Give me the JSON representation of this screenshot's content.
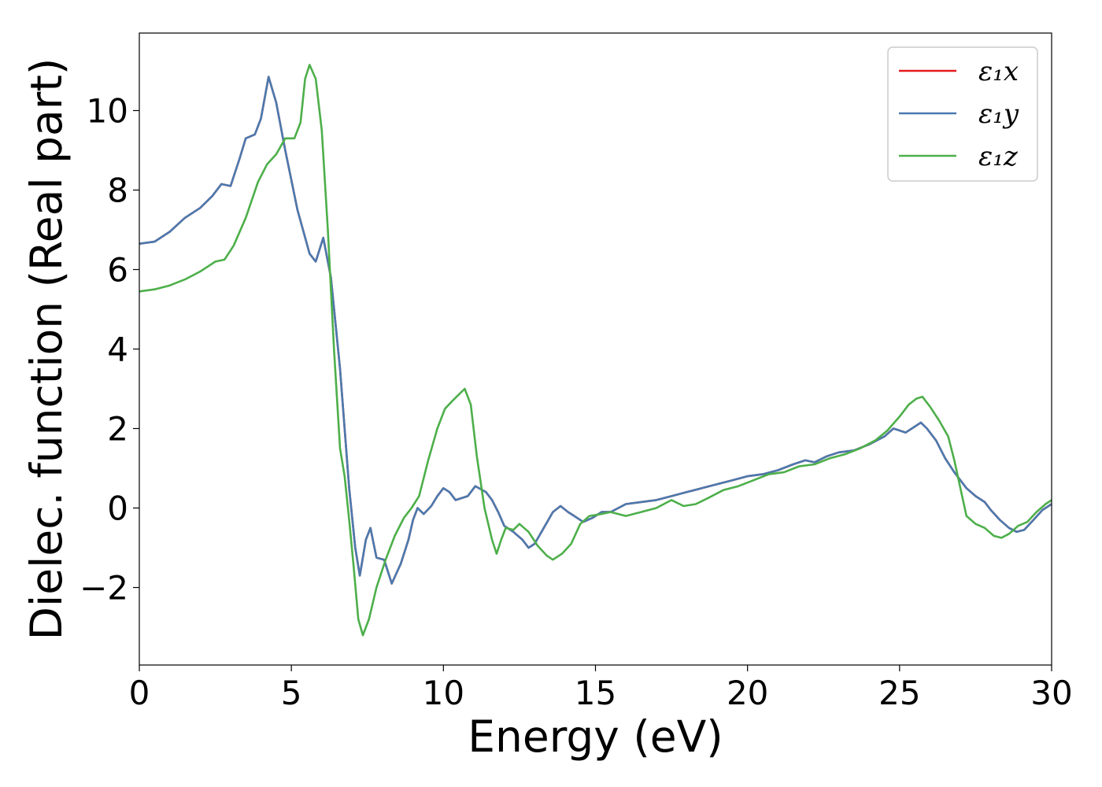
{
  "chart_data": {
    "type": "line",
    "title": "",
    "xlabel": "Energy (eV)",
    "ylabel": "Dielec. function (Real part)",
    "xlim": [
      0,
      30
    ],
    "ylim": [
      -3.95,
      11.95
    ],
    "xticks": [
      0,
      5,
      10,
      15,
      20,
      25,
      30
    ],
    "yticks": [
      -2,
      0,
      2,
      4,
      6,
      8,
      10
    ],
    "grid": false,
    "legend": "top-right",
    "series": [
      {
        "name": "ε₁x",
        "color": "#e41a1c",
        "points": [
          [
            0,
            6.65
          ],
          [
            0.5,
            6.7
          ],
          [
            1,
            6.95
          ],
          [
            1.5,
            7.3
          ],
          [
            2,
            7.55
          ],
          [
            2.4,
            7.85
          ],
          [
            2.7,
            8.15
          ],
          [
            3,
            8.1
          ],
          [
            3.3,
            8.8
          ],
          [
            3.5,
            9.3
          ],
          [
            3.8,
            9.4
          ],
          [
            4,
            9.8
          ],
          [
            4.25,
            10.85
          ],
          [
            4.5,
            10.2
          ],
          [
            4.8,
            9.0
          ],
          [
            5.2,
            7.5
          ],
          [
            5.6,
            6.4
          ],
          [
            5.8,
            6.2
          ],
          [
            6.05,
            6.8
          ],
          [
            6.3,
            5.8
          ],
          [
            6.6,
            3.5
          ],
          [
            6.9,
            0.5
          ],
          [
            7.1,
            -1.0
          ],
          [
            7.25,
            -1.7
          ],
          [
            7.45,
            -0.8
          ],
          [
            7.6,
            -0.5
          ],
          [
            7.8,
            -1.25
          ],
          [
            8.05,
            -1.3
          ],
          [
            8.3,
            -1.9
          ],
          [
            8.6,
            -1.4
          ],
          [
            8.85,
            -0.8
          ],
          [
            9.0,
            -0.3
          ],
          [
            9.15,
            0.0
          ],
          [
            9.35,
            -0.15
          ],
          [
            9.6,
            0.05
          ],
          [
            9.8,
            0.3
          ],
          [
            10.0,
            0.5
          ],
          [
            10.2,
            0.4
          ],
          [
            10.4,
            0.2
          ],
          [
            10.8,
            0.3
          ],
          [
            11.05,
            0.55
          ],
          [
            11.4,
            0.4
          ],
          [
            11.6,
            0.2
          ],
          [
            11.8,
            -0.1
          ],
          [
            12.0,
            -0.45
          ],
          [
            12.3,
            -0.6
          ],
          [
            12.6,
            -0.8
          ],
          [
            12.8,
            -1.0
          ],
          [
            13.0,
            -0.9
          ],
          [
            13.3,
            -0.5
          ],
          [
            13.6,
            -0.1
          ],
          [
            13.85,
            0.05
          ],
          [
            14.1,
            -0.1
          ],
          [
            14.3,
            -0.2
          ],
          [
            14.6,
            -0.35
          ],
          [
            14.9,
            -0.25
          ],
          [
            15.2,
            -0.1
          ],
          [
            15.5,
            -0.1
          ],
          [
            16.0,
            0.1
          ],
          [
            16.5,
            0.15
          ],
          [
            17.0,
            0.2
          ],
          [
            17.5,
            0.3
          ],
          [
            18.0,
            0.4
          ],
          [
            18.5,
            0.5
          ],
          [
            19.0,
            0.6
          ],
          [
            19.5,
            0.7
          ],
          [
            20.0,
            0.8
          ],
          [
            20.5,
            0.85
          ],
          [
            21.0,
            0.95
          ],
          [
            21.5,
            1.1
          ],
          [
            21.9,
            1.2
          ],
          [
            22.2,
            1.15
          ],
          [
            22.6,
            1.3
          ],
          [
            23.0,
            1.4
          ],
          [
            23.5,
            1.45
          ],
          [
            24.0,
            1.6
          ],
          [
            24.5,
            1.8
          ],
          [
            24.8,
            2.0
          ],
          [
            25.2,
            1.9
          ],
          [
            25.5,
            2.05
          ],
          [
            25.7,
            2.15
          ],
          [
            25.9,
            2.0
          ],
          [
            26.2,
            1.7
          ],
          [
            26.5,
            1.25
          ],
          [
            26.8,
            0.9
          ],
          [
            27.2,
            0.5
          ],
          [
            27.5,
            0.3
          ],
          [
            27.8,
            0.15
          ],
          [
            28.0,
            -0.05
          ],
          [
            28.3,
            -0.3
          ],
          [
            28.6,
            -0.5
          ],
          [
            28.85,
            -0.6
          ],
          [
            29.1,
            -0.55
          ],
          [
            29.4,
            -0.3
          ],
          [
            29.7,
            -0.05
          ],
          [
            30.0,
            0.1
          ]
        ]
      },
      {
        "name": "ε₁y",
        "color": "#4a7aaf",
        "points": [
          [
            0,
            6.65
          ],
          [
            0.5,
            6.7
          ],
          [
            1,
            6.95
          ],
          [
            1.5,
            7.3
          ],
          [
            2,
            7.55
          ],
          [
            2.4,
            7.85
          ],
          [
            2.7,
            8.15
          ],
          [
            3,
            8.1
          ],
          [
            3.3,
            8.8
          ],
          [
            3.5,
            9.3
          ],
          [
            3.8,
            9.4
          ],
          [
            4,
            9.8
          ],
          [
            4.25,
            10.85
          ],
          [
            4.5,
            10.2
          ],
          [
            4.8,
            9.0
          ],
          [
            5.2,
            7.5
          ],
          [
            5.6,
            6.4
          ],
          [
            5.8,
            6.2
          ],
          [
            6.05,
            6.8
          ],
          [
            6.3,
            5.8
          ],
          [
            6.6,
            3.5
          ],
          [
            6.9,
            0.5
          ],
          [
            7.1,
            -1.0
          ],
          [
            7.25,
            -1.7
          ],
          [
            7.45,
            -0.8
          ],
          [
            7.6,
            -0.5
          ],
          [
            7.8,
            -1.25
          ],
          [
            8.05,
            -1.3
          ],
          [
            8.3,
            -1.9
          ],
          [
            8.6,
            -1.4
          ],
          [
            8.85,
            -0.8
          ],
          [
            9.0,
            -0.3
          ],
          [
            9.15,
            0.0
          ],
          [
            9.35,
            -0.15
          ],
          [
            9.6,
            0.05
          ],
          [
            9.8,
            0.3
          ],
          [
            10.0,
            0.5
          ],
          [
            10.2,
            0.4
          ],
          [
            10.4,
            0.2
          ],
          [
            10.8,
            0.3
          ],
          [
            11.05,
            0.55
          ],
          [
            11.4,
            0.4
          ],
          [
            11.6,
            0.2
          ],
          [
            11.8,
            -0.1
          ],
          [
            12.0,
            -0.45
          ],
          [
            12.3,
            -0.6
          ],
          [
            12.6,
            -0.8
          ],
          [
            12.8,
            -1.0
          ],
          [
            13.0,
            -0.9
          ],
          [
            13.3,
            -0.5
          ],
          [
            13.6,
            -0.1
          ],
          [
            13.85,
            0.05
          ],
          [
            14.1,
            -0.1
          ],
          [
            14.3,
            -0.2
          ],
          [
            14.6,
            -0.35
          ],
          [
            14.9,
            -0.25
          ],
          [
            15.2,
            -0.1
          ],
          [
            15.5,
            -0.1
          ],
          [
            16.0,
            0.1
          ],
          [
            16.5,
            0.15
          ],
          [
            17.0,
            0.2
          ],
          [
            17.5,
            0.3
          ],
          [
            18.0,
            0.4
          ],
          [
            18.5,
            0.5
          ],
          [
            19.0,
            0.6
          ],
          [
            19.5,
            0.7
          ],
          [
            20.0,
            0.8
          ],
          [
            20.5,
            0.85
          ],
          [
            21.0,
            0.95
          ],
          [
            21.5,
            1.1
          ],
          [
            21.9,
            1.2
          ],
          [
            22.2,
            1.15
          ],
          [
            22.6,
            1.3
          ],
          [
            23.0,
            1.4
          ],
          [
            23.5,
            1.45
          ],
          [
            24.0,
            1.6
          ],
          [
            24.5,
            1.8
          ],
          [
            24.8,
            2.0
          ],
          [
            25.2,
            1.9
          ],
          [
            25.5,
            2.05
          ],
          [
            25.7,
            2.15
          ],
          [
            25.9,
            2.0
          ],
          [
            26.2,
            1.7
          ],
          [
            26.5,
            1.25
          ],
          [
            26.8,
            0.9
          ],
          [
            27.2,
            0.5
          ],
          [
            27.5,
            0.3
          ],
          [
            27.8,
            0.15
          ],
          [
            28.0,
            -0.05
          ],
          [
            28.3,
            -0.3
          ],
          [
            28.6,
            -0.5
          ],
          [
            28.85,
            -0.6
          ],
          [
            29.1,
            -0.55
          ],
          [
            29.4,
            -0.3
          ],
          [
            29.7,
            -0.05
          ],
          [
            30.0,
            0.1
          ]
        ]
      },
      {
        "name": "ε₁z",
        "color": "#4daf4a",
        "points": [
          [
            0,
            5.45
          ],
          [
            0.5,
            5.5
          ],
          [
            1,
            5.6
          ],
          [
            1.5,
            5.75
          ],
          [
            2,
            5.95
          ],
          [
            2.3,
            6.1
          ],
          [
            2.5,
            6.2
          ],
          [
            2.8,
            6.25
          ],
          [
            3.1,
            6.6
          ],
          [
            3.5,
            7.3
          ],
          [
            3.9,
            8.2
          ],
          [
            4.2,
            8.65
          ],
          [
            4.5,
            8.9
          ],
          [
            4.8,
            9.3
          ],
          [
            5.1,
            9.3
          ],
          [
            5.3,
            9.7
          ],
          [
            5.45,
            10.8
          ],
          [
            5.6,
            11.15
          ],
          [
            5.8,
            10.8
          ],
          [
            6.0,
            9.5
          ],
          [
            6.2,
            7.0
          ],
          [
            6.4,
            4.0
          ],
          [
            6.6,
            1.5
          ],
          [
            6.75,
            0.8
          ],
          [
            6.9,
            -0.3
          ],
          [
            7.05,
            -1.5
          ],
          [
            7.2,
            -2.8
          ],
          [
            7.35,
            -3.2
          ],
          [
            7.55,
            -2.8
          ],
          [
            7.8,
            -2.0
          ],
          [
            8.1,
            -1.3
          ],
          [
            8.4,
            -0.7
          ],
          [
            8.7,
            -0.25
          ],
          [
            8.95,
            0.0
          ],
          [
            9.2,
            0.3
          ],
          [
            9.5,
            1.2
          ],
          [
            9.8,
            2.0
          ],
          [
            10.05,
            2.5
          ],
          [
            10.3,
            2.7
          ],
          [
            10.5,
            2.85
          ],
          [
            10.7,
            3.0
          ],
          [
            10.9,
            2.6
          ],
          [
            11.1,
            1.3
          ],
          [
            11.35,
            0.0
          ],
          [
            11.6,
            -0.8
          ],
          [
            11.75,
            -1.15
          ],
          [
            11.9,
            -0.8
          ],
          [
            12.05,
            -0.5
          ],
          [
            12.3,
            -0.55
          ],
          [
            12.5,
            -0.4
          ],
          [
            12.8,
            -0.6
          ],
          [
            13.1,
            -0.95
          ],
          [
            13.4,
            -1.2
          ],
          [
            13.6,
            -1.3
          ],
          [
            13.9,
            -1.15
          ],
          [
            14.2,
            -0.9
          ],
          [
            14.5,
            -0.4
          ],
          [
            14.8,
            -0.2
          ],
          [
            15.2,
            -0.15
          ],
          [
            15.5,
            -0.1
          ],
          [
            16.0,
            -0.2
          ],
          [
            16.5,
            -0.1
          ],
          [
            17.0,
            0.0
          ],
          [
            17.5,
            0.2
          ],
          [
            17.9,
            0.05
          ],
          [
            18.3,
            0.1
          ],
          [
            18.7,
            0.25
          ],
          [
            19.2,
            0.45
          ],
          [
            19.7,
            0.55
          ],
          [
            20.2,
            0.7
          ],
          [
            20.7,
            0.85
          ],
          [
            21.2,
            0.9
          ],
          [
            21.7,
            1.05
          ],
          [
            22.2,
            1.1
          ],
          [
            22.7,
            1.25
          ],
          [
            23.2,
            1.35
          ],
          [
            23.7,
            1.5
          ],
          [
            24.2,
            1.7
          ],
          [
            24.6,
            1.95
          ],
          [
            25.0,
            2.3
          ],
          [
            25.3,
            2.6
          ],
          [
            25.55,
            2.75
          ],
          [
            25.75,
            2.8
          ],
          [
            26.0,
            2.55
          ],
          [
            26.3,
            2.2
          ],
          [
            26.6,
            1.8
          ],
          [
            26.8,
            1.2
          ],
          [
            27.0,
            0.5
          ],
          [
            27.2,
            -0.2
          ],
          [
            27.5,
            -0.4
          ],
          [
            27.8,
            -0.5
          ],
          [
            28.1,
            -0.7
          ],
          [
            28.35,
            -0.75
          ],
          [
            28.6,
            -0.65
          ],
          [
            28.9,
            -0.45
          ],
          [
            29.2,
            -0.35
          ],
          [
            29.5,
            -0.1
          ],
          [
            29.8,
            0.1
          ],
          [
            30.0,
            0.2
          ]
        ]
      }
    ]
  }
}
